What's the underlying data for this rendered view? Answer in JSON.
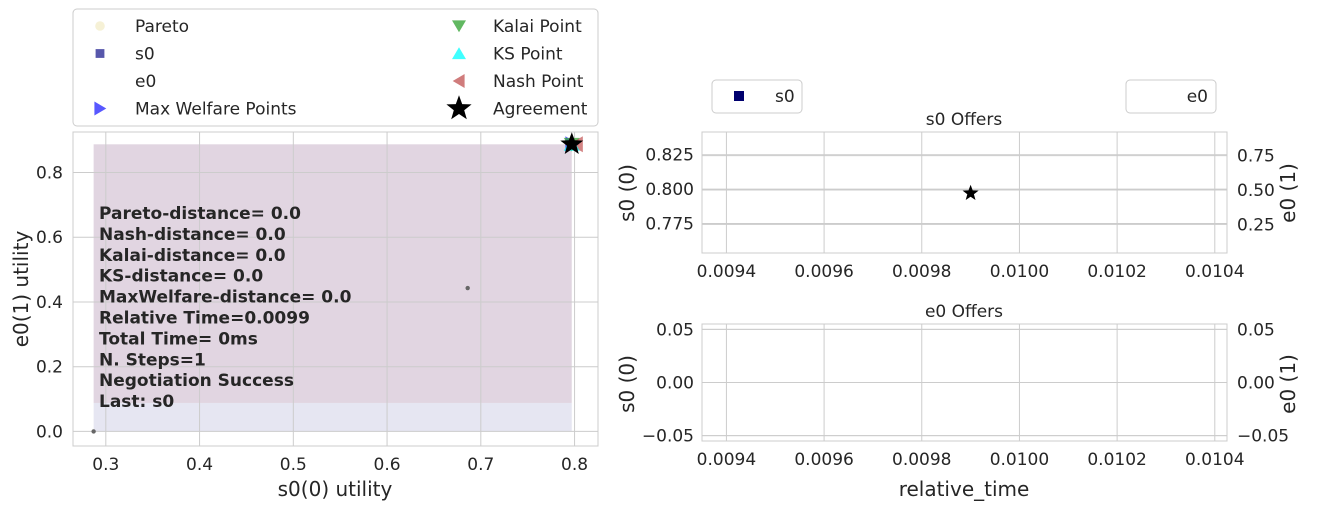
{
  "chart_data": [
    {
      "type": "scatter",
      "xlabel": "s0(0) utility",
      "ylabel": "e0(1) utility",
      "xlim": [
        0.265,
        0.825
      ],
      "ylim": [
        -0.045,
        0.925
      ],
      "xticks": [
        "0.3",
        "0.4",
        "0.5",
        "0.6",
        "0.7",
        "0.8"
      ],
      "yticks": [
        "0.0",
        "0.2",
        "0.4",
        "0.6",
        "0.8"
      ],
      "grid": true,
      "legend_position": "above",
      "legend": [
        {
          "label": "Pareto",
          "marker": "circle",
          "color": "#f3ecc8"
        },
        {
          "label": "Kalai Point",
          "marker": "triangle-down",
          "color": "#2ca02c"
        },
        {
          "label": "s0",
          "marker": "square",
          "color": "#1f1f8f"
        },
        {
          "label": "KS Point",
          "marker": "triangle-up",
          "color": "#00ffff"
        },
        {
          "label": "e0",
          "marker": "none",
          "color": "#ffffff"
        },
        {
          "label": "Nash Point",
          "marker": "triangle-left",
          "color": "#c05050"
        },
        {
          "label": "Max Welfare Points",
          "marker": "triangle-right",
          "color": "#2020ff"
        },
        {
          "label": "Agreement",
          "marker": "star",
          "color": "#000000"
        }
      ],
      "regions": [
        {
          "x0": 0.287,
          "x1": 0.797,
          "y0": 0.0,
          "y1": 0.088,
          "color": "#e6e6f2"
        },
        {
          "x0": 0.287,
          "x1": 0.797,
          "y0": 0.088,
          "y1": 0.887,
          "color": "#e1d5e1"
        }
      ],
      "outcome_points": [
        {
          "x": 0.287,
          "y": 0.0
        },
        {
          "x": 0.686,
          "y": 0.443
        }
      ],
      "special_points": [
        {
          "name": "Kalai Point",
          "x": 0.797,
          "y": 0.887
        },
        {
          "name": "KS Point",
          "x": 0.797,
          "y": 0.887
        },
        {
          "name": "Nash Point",
          "x": 0.802,
          "y": 0.887
        },
        {
          "name": "Max Welfare Points",
          "x": 0.797,
          "y": 0.887
        },
        {
          "name": "Agreement",
          "x": 0.797,
          "y": 0.887
        }
      ],
      "annotation": [
        "Pareto-distance=  0.0",
        "Nash-distance=  0.0",
        "Kalai-distance=  0.0",
        "KS-distance=  0.0",
        "MaxWelfare-distance=  0.0",
        "Relative Time=0.0099",
        "Total Time= 0ms",
        "N. Steps=1",
        "Negotiation Success",
        "Last: s0"
      ]
    },
    {
      "type": "scatter",
      "title": "s0 Offers",
      "xlabel": "",
      "ylabel": "s0 (0)",
      "y2label": "e0 (1)",
      "xlim": [
        0.00935,
        0.010425
      ],
      "ylim": [
        0.7535,
        0.8415
      ],
      "y2lim": [
        0.0425,
        0.9215
      ],
      "xticks": [
        "0.0094",
        "0.0096",
        "0.0098",
        "0.0100",
        "0.0102",
        "0.0104"
      ],
      "yticks": [
        "0.775",
        "0.800",
        "0.825"
      ],
      "y2ticks": [
        "0.25",
        "0.50",
        "0.75"
      ],
      "grid": true,
      "legend_left": [
        {
          "label": "s0",
          "marker": "square",
          "color": "#00006e"
        }
      ],
      "legend_right": [
        {
          "label": "e0",
          "marker": "none",
          "color": "#ffffff"
        }
      ],
      "points": [
        {
          "x": 0.0099,
          "y": 0.797,
          "marker": "star",
          "color": "#000000"
        }
      ]
    },
    {
      "type": "line",
      "title": "e0 Offers",
      "xlabel": "relative_time",
      "ylabel": "s0 (0)",
      "y2label": "e0 (1)",
      "xlim": [
        0.00935,
        0.010425
      ],
      "ylim": [
        -0.055,
        0.055
      ],
      "y2lim": [
        -0.055,
        0.055
      ],
      "xticks": [
        "0.0094",
        "0.0096",
        "0.0098",
        "0.0100",
        "0.0102",
        "0.0104"
      ],
      "yticks": [
        "−0.05",
        "0.00",
        "0.05"
      ],
      "y2ticks": [
        "−0.05",
        "0.00",
        "0.05"
      ],
      "grid": true,
      "series": []
    }
  ]
}
